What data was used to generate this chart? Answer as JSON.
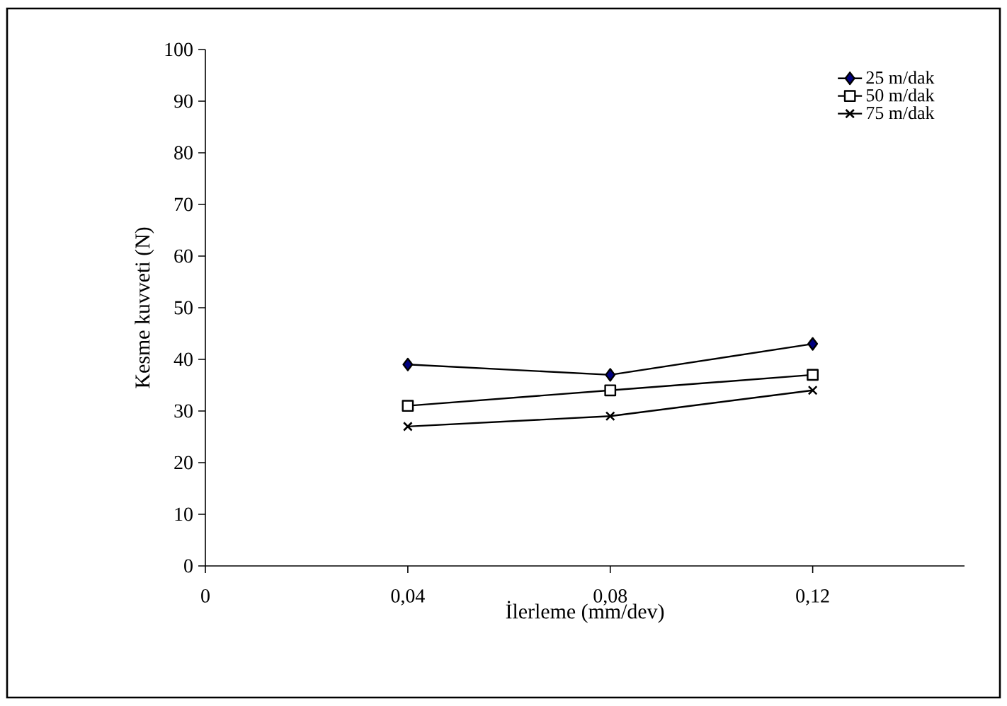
{
  "chart_data": {
    "type": "line",
    "xlabel": "İlerleme (mm/dev)",
    "ylabel": "Kesme kuvveti (N)",
    "x": [
      0.04,
      0.08,
      0.12
    ],
    "series": [
      {
        "name": "25 m/dak",
        "color": "#000080",
        "marker": "diamond",
        "values": [
          39,
          37,
          43
        ]
      },
      {
        "name": "50 m/dak",
        "color": "#000000",
        "marker": "square",
        "values": [
          31,
          34,
          37
        ]
      },
      {
        "name": "75 m/dak",
        "color": "#000000",
        "marker": "cross",
        "values": [
          27,
          29,
          34
        ]
      }
    ],
    "xlim": [
      0,
      0.15
    ],
    "xticks": [
      {
        "value": 0,
        "label": "0"
      },
      {
        "value": 0.04,
        "label": "0,04"
      },
      {
        "value": 0.08,
        "label": "0,08"
      },
      {
        "value": 0.12,
        "label": "0,12"
      }
    ],
    "ylim": [
      0,
      100
    ],
    "yticks": [
      0,
      10,
      20,
      30,
      40,
      50,
      60,
      70,
      80,
      90,
      100
    ],
    "grid": false,
    "legend": "top right",
    "line_style": "solid"
  }
}
